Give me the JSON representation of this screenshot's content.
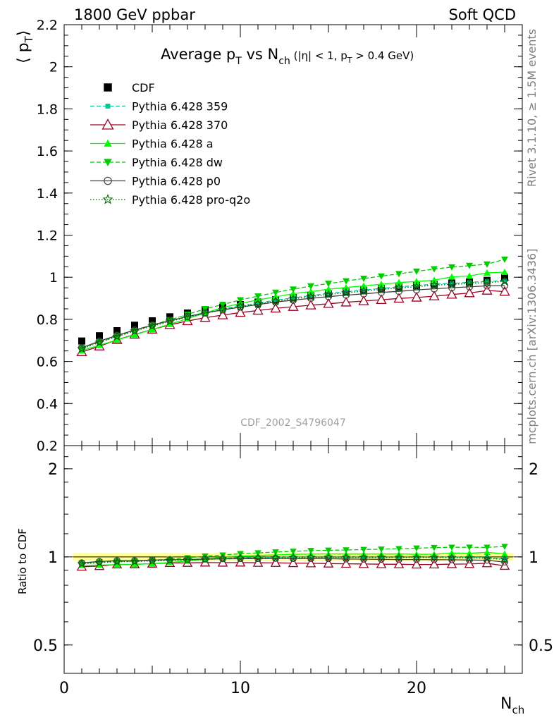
{
  "header": {
    "left": "1800 GeV ppbar",
    "right": "Soft QCD"
  },
  "side_text": {
    "rivet": "Rivet 3.1.10, ≥ 1.5M events",
    "mcplots": "mcplots.cern.ch [arXiv:1306.3436]"
  },
  "chart_data": {
    "type": "line",
    "title": {
      "main": "Average p",
      "sub1": "T",
      "mid": " vs N",
      "sub2": "ch",
      "cut1": " (|η| < 1, p",
      "sub3": "T",
      "cut2": " > 0.4 GeV)"
    },
    "watermark": "CDF_2002_S4796047",
    "xlabel": {
      "main": "N",
      "sub": "ch"
    },
    "ylabel": {
      "pre": "⟨ p",
      "sub": "T",
      "post": "⟩"
    },
    "ratio_ylabel": "Ratio to CDF",
    "xlim": [
      0,
      26
    ],
    "ylim": [
      0.2,
      2.2
    ],
    "ratio_ylim": [
      0.4,
      2.4
    ],
    "ratio_log": true,
    "x_ticks": [
      "0",
      "10",
      "20"
    ],
    "y_ticks": [
      "0.2",
      "0.4",
      "0.6",
      "0.8",
      "1",
      "1.2",
      "1.4",
      "1.6",
      "1.8",
      "2",
      "2.2"
    ],
    "ratio_ticks": [
      "0.5",
      "1",
      "2"
    ],
    "x": [
      1,
      2,
      3,
      4,
      5,
      6,
      7,
      8,
      9,
      10,
      11,
      12,
      13,
      14,
      15,
      16,
      17,
      18,
      19,
      20,
      21,
      22,
      23,
      24,
      25
    ],
    "data": {
      "name": "CDF",
      "values": [
        0.697,
        0.722,
        0.746,
        0.772,
        0.793,
        0.812,
        0.83,
        0.845,
        0.858,
        0.87,
        0.882,
        0.893,
        0.903,
        0.912,
        0.921,
        0.93,
        0.938,
        0.946,
        0.953,
        0.96,
        0.966,
        0.972,
        0.978,
        0.985,
        1.0
      ],
      "band_color": "#ffff66"
    },
    "series": [
      {
        "name": "Pythia 6.428 359",
        "color": "#00c896",
        "dash": "6,3",
        "marker": "square-small",
        "values": [
          0.665,
          0.695,
          0.722,
          0.748,
          0.772,
          0.793,
          0.813,
          0.832,
          0.848,
          0.864,
          0.877,
          0.891,
          0.902,
          0.913,
          0.923,
          0.931,
          0.939,
          0.947,
          0.954,
          0.961,
          0.967,
          0.971,
          0.976,
          0.98,
          0.983
        ]
      },
      {
        "name": "Pythia 6.428 370",
        "color": "#9a0020",
        "dash": "",
        "marker": "triangle-open",
        "values": [
          0.645,
          0.672,
          0.703,
          0.728,
          0.752,
          0.774,
          0.792,
          0.808,
          0.82,
          0.832,
          0.842,
          0.852,
          0.86,
          0.867,
          0.874,
          0.881,
          0.887,
          0.893,
          0.899,
          0.904,
          0.91,
          0.918,
          0.925,
          0.937,
          0.932
        ]
      },
      {
        "name": "Pythia 6.428 a",
        "color": "#00ff00",
        "dash": "",
        "marker": "triangle-up",
        "values": [
          0.652,
          0.677,
          0.702,
          0.727,
          0.752,
          0.777,
          0.803,
          0.83,
          0.856,
          0.876,
          0.892,
          0.907,
          0.922,
          0.932,
          0.943,
          0.951,
          0.959,
          0.967,
          0.975,
          0.98,
          0.986,
          1.002,
          1.006,
          1.021,
          1.024
        ]
      },
      {
        "name": "Pythia 6.428 dw",
        "color": "#00cc00",
        "dash": "6,3",
        "marker": "triangle-down",
        "values": [
          0.664,
          0.693,
          0.72,
          0.746,
          0.773,
          0.797,
          0.823,
          0.85,
          0.87,
          0.892,
          0.91,
          0.928,
          0.943,
          0.958,
          0.97,
          0.982,
          0.994,
          1.005,
          1.016,
          1.028,
          1.039,
          1.048,
          1.055,
          1.062,
          1.085
        ]
      },
      {
        "name": "Pythia 6.428 p0",
        "color": "#404040",
        "dash": "",
        "marker": "circle-open",
        "values": [
          0.665,
          0.696,
          0.724,
          0.749,
          0.773,
          0.794,
          0.813,
          0.83,
          0.845,
          0.858,
          0.87,
          0.882,
          0.891,
          0.9,
          0.908,
          0.915,
          0.921,
          0.928,
          0.933,
          0.94,
          0.945,
          0.95,
          0.954,
          0.959,
          0.96
        ]
      },
      {
        "name": "Pythia 6.428 pro-q2o",
        "color": "#006400",
        "dash": "1.5,2.5",
        "marker": "star-open",
        "values": [
          0.66,
          0.69,
          0.718,
          0.744,
          0.768,
          0.79,
          0.81,
          0.828,
          0.845,
          0.86,
          0.873,
          0.886,
          0.897,
          0.908,
          0.918,
          0.926,
          0.934,
          0.942,
          0.949,
          0.955,
          0.962,
          0.966,
          0.97,
          0.975,
          0.98
        ]
      }
    ]
  }
}
